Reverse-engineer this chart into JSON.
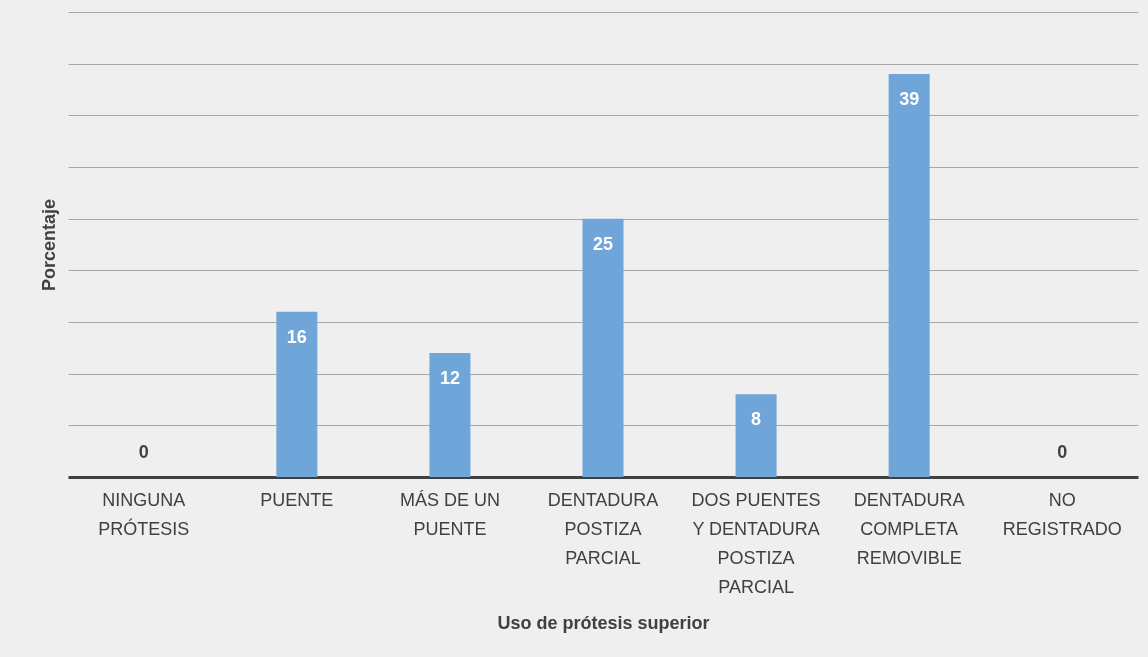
{
  "chart_data": {
    "type": "bar",
    "xlabel": "Uso de prótesis superior",
    "ylabel": "Porcentaje",
    "categories": [
      "NINGUNA PRÓTESIS",
      "PUENTE",
      "MÁS DE UN PUENTE",
      "DENTADURA POSTIZA PARCIAL",
      "DOS PUENTES Y DENTADURA POSTIZA PARCIAL",
      "DENTADURA COMPLETA REMOVIBLE",
      "NO REGISTRADO"
    ],
    "values": [
      0,
      16,
      12,
      25,
      8,
      39,
      0
    ],
    "color": "#6fa5d9",
    "data_labels": true,
    "ylim": [
      0,
      45
    ],
    "yticks": [
      {
        "value": 5,
        "label": null
      },
      {
        "value": 10,
        "label": null
      },
      {
        "value": 15,
        "label": null
      },
      {
        "value": 20,
        "label": null
      },
      {
        "value": 25,
        "label": null
      },
      {
        "value": 30,
        "label": null
      },
      {
        "value": 35,
        "label": null
      },
      {
        "value": 40,
        "label": null
      },
      {
        "value": 45,
        "label": null
      }
    ],
    "grid": "y",
    "tick_labels": "x"
  }
}
